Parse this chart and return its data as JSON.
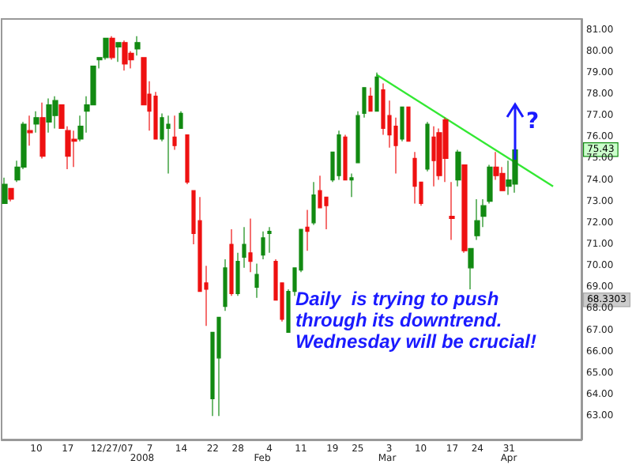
{
  "chart_data": {
    "type": "candlestick",
    "categories": [
      null,
      null,
      null,
      null,
      null,
      "10",
      null,
      null,
      null,
      null,
      "17",
      null,
      null,
      null,
      null,
      null,
      null,
      "12/27/07",
      null,
      null,
      null,
      null,
      null,
      "7",
      null,
      null,
      null,
      null,
      "14",
      null,
      null,
      null,
      null,
      "22",
      null,
      null,
      null,
      "28",
      null,
      null,
      null,
      null,
      "4",
      null,
      null,
      null,
      null,
      "11",
      null,
      null,
      null,
      null,
      "19",
      null,
      null,
      null,
      "25",
      null,
      null,
      null,
      null,
      "3",
      null,
      null,
      null,
      null,
      "10",
      null,
      null,
      null,
      null,
      "17",
      null,
      null,
      null,
      "24",
      null,
      null,
      null,
      null,
      "31",
      null,
      null,
      null,
      null,
      null,
      null,
      null,
      null,
      null,
      null,
      null
    ],
    "ohlc": [
      [
        72.9,
        74.1,
        72.9,
        73.8
      ],
      [
        73.6,
        73.6,
        73.0,
        73.1
      ],
      [
        74.0,
        74.9,
        73.9,
        74.6
      ],
      [
        74.6,
        76.7,
        74.5,
        76.6
      ],
      [
        76.3,
        77.0,
        75.6,
        76.2
      ],
      [
        76.6,
        77.2,
        76.2,
        76.9
      ],
      [
        76.9,
        77.6,
        75.0,
        75.1
      ],
      [
        76.7,
        77.8,
        76.2,
        77.5
      ],
      [
        77.0,
        77.9,
        76.4,
        77.7
      ],
      [
        77.5,
        77.5,
        76.4,
        76.4
      ],
      [
        76.3,
        76.5,
        74.5,
        75.1
      ],
      [
        75.9,
        76.3,
        74.6,
        75.8
      ],
      [
        75.9,
        77.0,
        75.8,
        76.5
      ],
      [
        77.2,
        77.9,
        76.2,
        77.5
      ],
      [
        77.5,
        79.3,
        77.5,
        79.3
      ],
      [
        79.6,
        79.7,
        79.2,
        79.7
      ],
      [
        79.7,
        80.6,
        79.6,
        80.6
      ],
      [
        80.6,
        80.7,
        79.6,
        79.7
      ],
      [
        80.2,
        80.4,
        79.5,
        80.4
      ],
      [
        80.4,
        80.5,
        79.1,
        79.4
      ],
      [
        79.9,
        80.0,
        79.2,
        79.6
      ],
      [
        80.1,
        80.7,
        79.8,
        80.4
      ],
      [
        79.7,
        79.7,
        77.5,
        77.5
      ],
      [
        78.0,
        78.6,
        76.3,
        77.2
      ],
      [
        77.9,
        78.1,
        75.9,
        75.9
      ],
      [
        75.9,
        77.1,
        75.8,
        76.9
      ],
      [
        76.4,
        77.0,
        74.3,
        76.6
      ],
      [
        76.0,
        77.0,
        75.4,
        75.6
      ],
      [
        76.4,
        77.2,
        76.4,
        77.1
      ],
      [
        76.1,
        76.1,
        73.8,
        73.9
      ],
      [
        73.5,
        73.5,
        71.0,
        71.5
      ],
      [
        72.1,
        73.2,
        68.8,
        68.8
      ],
      [
        69.2,
        70.0,
        67.2,
        68.9
      ],
      [
        63.8,
        66.9,
        63.0,
        66.9
      ],
      [
        65.7,
        67.6,
        63.0,
        67.6
      ],
      [
        68.1,
        70.3,
        67.9,
        69.9
      ],
      [
        71.0,
        71.7,
        68.6,
        68.7
      ],
      [
        68.7,
        70.6,
        68.6,
        70.2
      ],
      [
        70.4,
        71.8,
        69.9,
        71.0
      ],
      [
        70.6,
        72.2,
        69.7,
        70.2
      ],
      [
        69.0,
        70.1,
        68.5,
        69.6
      ],
      [
        70.5,
        71.6,
        70.3,
        71.3
      ],
      [
        71.5,
        71.8,
        70.6,
        71.6
      ],
      [
        70.2,
        70.3,
        68.4,
        68.4
      ],
      [
        69.2,
        69.2,
        67.4,
        67.5
      ],
      [
        66.9,
        68.9,
        66.9,
        68.8
      ],
      [
        68.8,
        69.9,
        68.6,
        69.9
      ],
      [
        69.8,
        71.7,
        69.7,
        71.7
      ],
      [
        71.8,
        72.6,
        70.7,
        71.6
      ],
      [
        72.0,
        73.9,
        71.9,
        73.3
      ],
      [
        73.5,
        74.2,
        72.7,
        72.7
      ],
      [
        73.2,
        73.2,
        71.7,
        72.8
      ],
      [
        74.0,
        75.3,
        73.9,
        75.3
      ],
      [
        74.2,
        76.3,
        74.0,
        76.1
      ],
      [
        76.0,
        76.1,
        74.0,
        74.0
      ],
      [
        74.0,
        74.3,
        73.2,
        74.1
      ],
      [
        74.8,
        77.2,
        74.8,
        77.0
      ],
      [
        77.1,
        78.3,
        76.9,
        78.3
      ],
      [
        77.9,
        78.3,
        77.2,
        77.2
      ],
      [
        77.2,
        79.0,
        77.2,
        78.8
      ],
      [
        78.2,
        78.5,
        76.1,
        76.4
      ],
      [
        77.0,
        77.7,
        75.5,
        76.1
      ],
      [
        76.5,
        76.9,
        74.3,
        75.6
      ],
      [
        75.9,
        77.4,
        75.8,
        77.4
      ],
      [
        77.4,
        77.4,
        75.8,
        75.8
      ],
      [
        75.0,
        75.3,
        72.9,
        73.7
      ],
      [
        73.9,
        73.9,
        72.8,
        72.9
      ],
      [
        74.5,
        76.7,
        74.4,
        76.6
      ],
      [
        76.0,
        76.5,
        73.7,
        74.9
      ],
      [
        76.2,
        76.4,
        74.0,
        74.2
      ],
      [
        76.8,
        76.9,
        73.9,
        75.0
      ],
      [
        72.3,
        73.9,
        71.2,
        72.2
      ],
      [
        74.0,
        75.4,
        73.7,
        75.3
      ],
      [
        74.7,
        74.7,
        70.6,
        70.7
      ],
      [
        69.9,
        70.8,
        68.9,
        70.8
      ],
      [
        71.4,
        73.1,
        71.2,
        72.1
      ],
      [
        72.3,
        73.1,
        71.8,
        72.8
      ],
      [
        73.0,
        74.7,
        72.9,
        74.6
      ],
      [
        74.6,
        75.3,
        74.0,
        74.2
      ],
      [
        74.3,
        74.6,
        73.5,
        73.5
      ],
      [
        73.7,
        74.9,
        73.3,
        74.0
      ],
      [
        73.8,
        75.4,
        73.4,
        75.4
      ],
      null,
      null,
      null,
      null,
      null,
      null,
      null,
      null,
      null,
      null
    ],
    "series": [
      {
        "type": "line",
        "color": "#33e833",
        "values": [
          null,
          null,
          null,
          null,
          null,
          null,
          null,
          null,
          null,
          null,
          null,
          null,
          null,
          null,
          null,
          null,
          null,
          null,
          null,
          null,
          null,
          null,
          null,
          null,
          null,
          null,
          null,
          null,
          null,
          null,
          null,
          null,
          null,
          null,
          null,
          null,
          null,
          null,
          null,
          null,
          null,
          null,
          null,
          null,
          null,
          null,
          null,
          null,
          null,
          null,
          null,
          null,
          null,
          null,
          null,
          null,
          null,
          null,
          null,
          78.9,
          null,
          null,
          null,
          null,
          null,
          null,
          null,
          null,
          null,
          null,
          null,
          null,
          null,
          null,
          null,
          null,
          null,
          null,
          null,
          null,
          null,
          null,
          null,
          null,
          null,
          null,
          null,
          73.7,
          null,
          null,
          null,
          null
        ]
      }
    ],
    "ylim": [
      61.9,
      81.5
    ],
    "yticks": [
      {
        "value": 63,
        "label": "63.00"
      },
      {
        "value": 64,
        "label": "64.00"
      },
      {
        "value": 65,
        "label": "65.00"
      },
      {
        "value": 66,
        "label": "66.00"
      },
      {
        "value": 67,
        "label": "67.00"
      },
      {
        "value": 68,
        "label": "68.00"
      },
      {
        "value": 69,
        "label": "69.00"
      },
      {
        "value": 70,
        "label": "70.00"
      },
      {
        "value": 71,
        "label": "71.00"
      },
      {
        "value": 72,
        "label": "72.00"
      },
      {
        "value": 73,
        "label": "73.00"
      },
      {
        "value": 74,
        "label": "74.00"
      },
      {
        "value": 75,
        "label": "75.00"
      },
      {
        "value": 76,
        "label": "76.00"
      },
      {
        "value": 77,
        "label": "77.00"
      },
      {
        "value": 78,
        "label": "78.00"
      },
      {
        "value": 79,
        "label": "79.00"
      },
      {
        "value": 80,
        "label": "80.00"
      },
      {
        "value": 81,
        "label": "81.00"
      }
    ],
    "annotations": [
      "Daily  is trying to push\nthrough its downtrend.\nWednesday will be crucial!",
      "?",
      "75.43",
      "68.3303",
      "2008",
      "Feb",
      "Mar",
      "Apr"
    ],
    "grid": false
  }
}
